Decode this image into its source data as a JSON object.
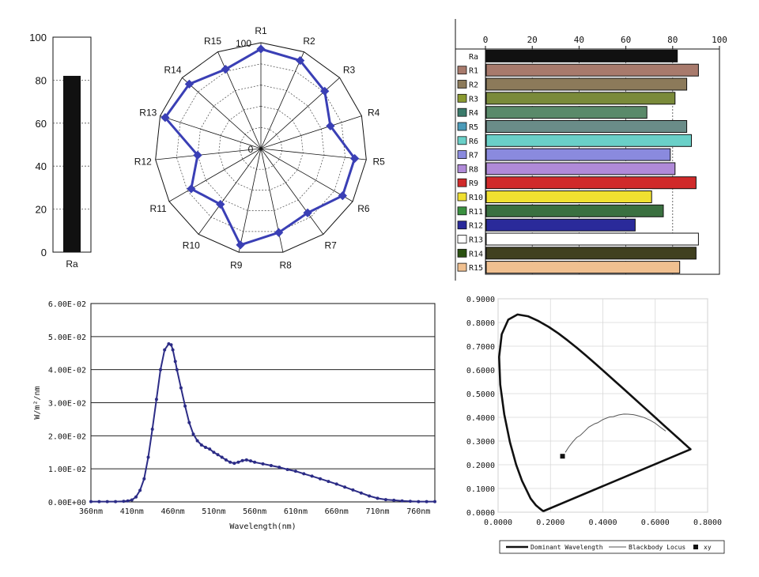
{
  "chart_data": [
    {
      "type": "bar",
      "categories": [
        "Ra"
      ],
      "values": [
        82
      ],
      "ylim": [
        0,
        100
      ],
      "yticks": [
        "0",
        "20",
        "40",
        "60",
        "80",
        "100"
      ],
      "bar_color": "#111111"
    },
    {
      "type": "radar",
      "categories": [
        "R1",
        "R2",
        "R3",
        "R4",
        "R5",
        "R6",
        "R7",
        "R8",
        "R9",
        "R10",
        "R11",
        "R12",
        "R13",
        "R14",
        "R15"
      ],
      "values": [
        94,
        91,
        81,
        69,
        89,
        89,
        75,
        81,
        93,
        65,
        76,
        60,
        95,
        91,
        82
      ],
      "rlim": [
        0,
        100
      ],
      "rticks": [
        "0",
        "100"
      ],
      "line_color": "#3a3fb5"
    },
    {
      "type": "bar",
      "orientation": "horizontal",
      "categories": [
        "Ra",
        "R1",
        "R2",
        "R3",
        "R4",
        "R5",
        "R6",
        "R7",
        "R8",
        "R9",
        "R10",
        "R11",
        "R12",
        "R13",
        "R14",
        "R15"
      ],
      "values": [
        82,
        91,
        86,
        81,
        69,
        86,
        88,
        79,
        81,
        90,
        71,
        76,
        64,
        91,
        90,
        83
      ],
      "colors": [
        "#111111",
        "#a87a6c",
        "#8c7a5a",
        "#7a8a3a",
        "#5a8a6a",
        "#6a8c88",
        "#6ad0c8",
        "#8a8ade",
        "#b08ad8",
        "#d02a2a",
        "#f0e030",
        "#3a7040",
        "#2a2a9a",
        "#ffffff",
        "#404020",
        "#f0c090"
      ],
      "swatches": [
        "#b86a20",
        "#a87a6c",
        "#8c7a5a",
        "#8a9a30",
        "#3a7a6a",
        "#4a9ab8",
        "#6ad0c8",
        "#8a8ade",
        "#b08ad8",
        "#d02a2a",
        "#f0e030",
        "#3a9040",
        "#2a2a9a",
        "#ffffff",
        "#2a5010",
        "#f0c090"
      ],
      "xlim": [
        0,
        100
      ],
      "xticks": [
        "0",
        "20",
        "40",
        "60",
        "80",
        "100"
      ]
    },
    {
      "type": "line",
      "xlabel": "Wavelength(nm)",
      "ylabel": "W/m²/nm",
      "xticks": [
        "360nm",
        "410nm",
        "460nm",
        "510nm",
        "560nm",
        "610nm",
        "660nm",
        "710nm",
        "760nm"
      ],
      "yticks": [
        "0.00E+00",
        "1.00E-02",
        "2.00E-02",
        "3.00E-02",
        "4.00E-02",
        "5.00E-02",
        "6.00E-02"
      ],
      "xlim": [
        360,
        780
      ],
      "ylim": [
        0,
        0.06
      ],
      "series": [
        {
          "x": [
            360,
            370,
            380,
            390,
            400,
            405,
            410,
            415,
            420,
            425,
            430,
            435,
            440,
            445,
            450,
            455,
            458,
            460,
            463,
            465,
            470,
            475,
            480,
            485,
            490,
            495,
            500,
            505,
            510,
            515,
            520,
            525,
            530,
            535,
            540,
            545,
            550,
            555,
            560,
            570,
            580,
            590,
            600,
            610,
            620,
            630,
            640,
            650,
            660,
            670,
            680,
            690,
            700,
            710,
            720,
            730,
            740,
            750,
            760,
            770,
            780
          ],
          "y": [
            0.0001,
            0.0001,
            0.0001,
            0.0001,
            0.0002,
            0.0003,
            0.0006,
            0.0015,
            0.0035,
            0.007,
            0.0135,
            0.022,
            0.031,
            0.04,
            0.046,
            0.0478,
            0.0475,
            0.046,
            0.0425,
            0.04,
            0.0345,
            0.029,
            0.024,
            0.0205,
            0.0185,
            0.0172,
            0.0165,
            0.016,
            0.015,
            0.0143,
            0.0135,
            0.0127,
            0.012,
            0.0117,
            0.012,
            0.0125,
            0.0127,
            0.0124,
            0.012,
            0.0115,
            0.011,
            0.0105,
            0.0098,
            0.0093,
            0.0085,
            0.0078,
            0.007,
            0.0062,
            0.0054,
            0.0045,
            0.0036,
            0.0027,
            0.0018,
            0.0011,
            0.0007,
            0.0005,
            0.0003,
            0.0002,
            0.0001,
            0.0001,
            0.0001
          ],
          "color": "#2c2c86"
        }
      ]
    },
    {
      "type": "scatter",
      "subtype": "chromaticity",
      "xticks": [
        "0.0000",
        "0.2000",
        "0.4000",
        "0.6000",
        "0.8000"
      ],
      "yticks": [
        "0.0000",
        "0.1000",
        "0.2000",
        "0.3000",
        "0.4000",
        "0.5000",
        "0.6000",
        "0.7000",
        "0.8000",
        "0.9000"
      ],
      "xlim": [
        0,
        0.8
      ],
      "ylim": [
        0,
        0.9
      ],
      "legend_position": "bottom",
      "legend": [
        "Dominant Wavelength",
        "Blackbody Locus",
        "xy"
      ],
      "spectral_locus": [
        [
          0.1741,
          0.005
        ],
        [
          0.1738,
          0.0049
        ],
        [
          0.1721,
          0.0048
        ],
        [
          0.1666,
          0.0089
        ],
        [
          0.1566,
          0.0177
        ],
        [
          0.144,
          0.0297
        ],
        [
          0.1241,
          0.0578
        ],
        [
          0.0913,
          0.1327
        ],
        [
          0.0687,
          0.2007
        ],
        [
          0.0454,
          0.295
        ],
        [
          0.0235,
          0.4127
        ],
        [
          0.0082,
          0.5384
        ],
        [
          0.0039,
          0.6548
        ],
        [
          0.0139,
          0.7502
        ],
        [
          0.0389,
          0.812
        ],
        [
          0.0743,
          0.8338
        ],
        [
          0.1142,
          0.8262
        ],
        [
          0.1547,
          0.8059
        ],
        [
          0.1929,
          0.7816
        ],
        [
          0.2296,
          0.7543
        ],
        [
          0.2658,
          0.7243
        ],
        [
          0.3016,
          0.6923
        ],
        [
          0.3373,
          0.6589
        ],
        [
          0.3731,
          0.6245
        ],
        [
          0.4087,
          0.5896
        ],
        [
          0.4441,
          0.5547
        ],
        [
          0.4788,
          0.5202
        ],
        [
          0.5125,
          0.4866
        ],
        [
          0.5448,
          0.4544
        ],
        [
          0.5752,
          0.4242
        ],
        [
          0.6029,
          0.3965
        ],
        [
          0.627,
          0.3725
        ],
        [
          0.6482,
          0.3514
        ],
        [
          0.6658,
          0.334
        ],
        [
          0.6801,
          0.3197
        ],
        [
          0.6915,
          0.3083
        ],
        [
          0.7006,
          0.2993
        ],
        [
          0.7079,
          0.292
        ],
        [
          0.714,
          0.2859
        ],
        [
          0.719,
          0.2809
        ],
        [
          0.723,
          0.277
        ],
        [
          0.726,
          0.274
        ],
        [
          0.7347,
          0.2653
        ]
      ],
      "blackbody_locus": [
        [
          0.2565,
          0.2524
        ],
        [
          0.27,
          0.275
        ],
        [
          0.2857,
          0.2973
        ],
        [
          0.3,
          0.315
        ],
        [
          0.3138,
          0.3236
        ],
        [
          0.33,
          0.341
        ],
        [
          0.346,
          0.3587
        ],
        [
          0.3697,
          0.3732
        ],
        [
          0.38,
          0.377
        ],
        [
          0.4,
          0.3907
        ],
        [
          0.4255,
          0.4016
        ],
        [
          0.44,
          0.403
        ],
        [
          0.4599,
          0.41
        ],
        [
          0.48,
          0.4138
        ],
        [
          0.4958,
          0.4133
        ],
        [
          0.5168,
          0.4114
        ],
        [
          0.53,
          0.408
        ],
        [
          0.5569,
          0.3993
        ],
        [
          0.58,
          0.388
        ],
        [
          0.6,
          0.375
        ],
        [
          0.62,
          0.358
        ],
        [
          0.64,
          0.342
        ]
      ],
      "point": {
        "x": 0.246,
        "y": 0.236
      }
    }
  ]
}
